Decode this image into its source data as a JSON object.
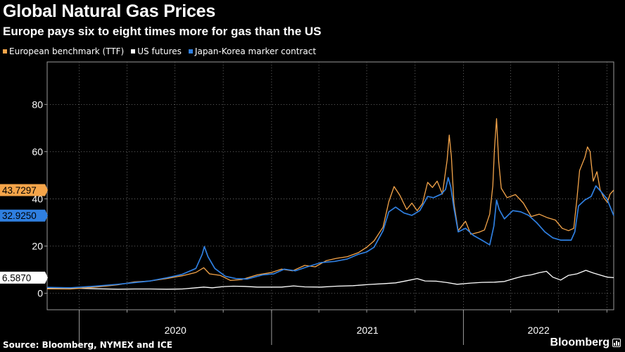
{
  "title": "Global Natural Gas Prices",
  "subtitle": "Europe pays six to eight times more for gas than the US",
  "source": "Source: Bloomberg, NYMEX and ICE",
  "brand": "Bloomberg",
  "legend": [
    {
      "label": "European benchmark (TTF)",
      "color": "#f5a54a"
    },
    {
      "label": "US futures",
      "color": "#ffffff"
    },
    {
      "label": "Japan-Korea marker contract",
      "color": "#2f7fe0"
    }
  ],
  "chart_data": {
    "type": "line",
    "title": "Global Natural Gas Prices",
    "subtitle": "Europe pays six to eight times more for gas than the US",
    "ylim": [
      -7,
      98
    ],
    "yticks": [
      0,
      20,
      40,
      60,
      80
    ],
    "xlim": [
      "2019-11-01",
      "2022-10-14"
    ],
    "year_labels": [
      "2020",
      "2021",
      "2022"
    ],
    "grid": true,
    "legend_position": "top-left",
    "series": [
      {
        "name": "European benchmark (TTF)",
        "color": "#f5a54a",
        "last_value": "43.7297",
        "points": [
          [
            "2019-11-01",
            1.9
          ],
          [
            "2019-12-15",
            1.8
          ],
          [
            "2020-02-01",
            2.6
          ],
          [
            "2020-03-15",
            3.6
          ],
          [
            "2020-04-15",
            4.8
          ],
          [
            "2020-05-15",
            5.2
          ],
          [
            "2020-06-15",
            6.2
          ],
          [
            "2020-07-15",
            7.4
          ],
          [
            "2020-08-10",
            8.8
          ],
          [
            "2020-08-25",
            10.8
          ],
          [
            "2020-09-05",
            8.2
          ],
          [
            "2020-09-25",
            7.6
          ],
          [
            "2020-10-15",
            5.4
          ],
          [
            "2020-11-05",
            5.8
          ],
          [
            "2020-12-05",
            7.8
          ],
          [
            "2021-01-01",
            8.8
          ],
          [
            "2021-01-20",
            10.2
          ],
          [
            "2021-02-10",
            9.5
          ],
          [
            "2021-03-05",
            11.8
          ],
          [
            "2021-03-25",
            11.2
          ],
          [
            "2021-04-15",
            13.8
          ],
          [
            "2021-05-05",
            14.8
          ],
          [
            "2021-05-25",
            15.5
          ],
          [
            "2021-06-15",
            17.2
          ],
          [
            "2021-07-01",
            19.5
          ],
          [
            "2021-07-15",
            22.2
          ],
          [
            "2021-08-01",
            28.0
          ],
          [
            "2021-08-12",
            38.8
          ],
          [
            "2021-08-22",
            45.2
          ],
          [
            "2021-09-02",
            41.5
          ],
          [
            "2021-09-15",
            35.5
          ],
          [
            "2021-09-25",
            38.2
          ],
          [
            "2021-10-05",
            35.0
          ],
          [
            "2021-10-15",
            38.0
          ],
          [
            "2021-10-25",
            47.0
          ],
          [
            "2021-11-03",
            44.8
          ],
          [
            "2021-11-12",
            47.5
          ],
          [
            "2021-11-22",
            42.0
          ],
          [
            "2021-12-01",
            56.5
          ],
          [
            "2021-12-05",
            67.0
          ],
          [
            "2021-12-09",
            58.0
          ],
          [
            "2021-12-14",
            38.0
          ],
          [
            "2021-12-22",
            26.5
          ],
          [
            "2022-01-05",
            30.5
          ],
          [
            "2022-01-15",
            25.0
          ],
          [
            "2022-01-30",
            25.8
          ],
          [
            "2022-02-10",
            26.8
          ],
          [
            "2022-02-20",
            33.5
          ],
          [
            "2022-02-26",
            45.5
          ],
          [
            "2022-03-01",
            61.0
          ],
          [
            "2022-03-05",
            74.0
          ],
          [
            "2022-03-09",
            56.0
          ],
          [
            "2022-03-14",
            44.5
          ],
          [
            "2022-03-25",
            40.5
          ],
          [
            "2022-04-10",
            41.8
          ],
          [
            "2022-04-25",
            38.2
          ],
          [
            "2022-05-10",
            32.5
          ],
          [
            "2022-05-25",
            33.5
          ],
          [
            "2022-06-10",
            32.0
          ],
          [
            "2022-06-25",
            31.0
          ],
          [
            "2022-07-08",
            27.5
          ],
          [
            "2022-07-20",
            26.5
          ],
          [
            "2022-07-30",
            27.5
          ],
          [
            "2022-08-05",
            40.0
          ],
          [
            "2022-08-10",
            52.0
          ],
          [
            "2022-08-20",
            57.5
          ],
          [
            "2022-08-25",
            62.0
          ],
          [
            "2022-08-30",
            60.0
          ],
          [
            "2022-09-01",
            55.5
          ],
          [
            "2022-09-05",
            47.5
          ],
          [
            "2022-09-12",
            51.5
          ],
          [
            "2022-09-18",
            44.0
          ],
          [
            "2022-09-25",
            40.5
          ],
          [
            "2022-10-02",
            38.5
          ],
          [
            "2022-10-07",
            42.0
          ],
          [
            "2022-10-14",
            43.7
          ]
        ]
      },
      {
        "name": "US futures",
        "color": "#ffffff",
        "last_value": "6.5870",
        "points": [
          [
            "2019-11-01",
            2.3
          ],
          [
            "2019-12-15",
            2.2
          ],
          [
            "2020-02-01",
            1.9
          ],
          [
            "2020-03-15",
            1.7
          ],
          [
            "2020-04-15",
            1.8
          ],
          [
            "2020-05-15",
            1.8
          ],
          [
            "2020-06-15",
            1.7
          ],
          [
            "2020-07-15",
            1.8
          ],
          [
            "2020-08-10",
            2.3
          ],
          [
            "2020-08-25",
            2.6
          ],
          [
            "2020-09-10",
            2.3
          ],
          [
            "2020-10-01",
            2.8
          ],
          [
            "2020-10-20",
            3.0
          ],
          [
            "2020-11-10",
            2.9
          ],
          [
            "2020-12-05",
            2.6
          ],
          [
            "2021-01-01",
            2.6
          ],
          [
            "2021-01-20",
            2.6
          ],
          [
            "2021-02-12",
            3.1
          ],
          [
            "2021-03-05",
            2.7
          ],
          [
            "2021-04-05",
            2.6
          ],
          [
            "2021-05-05",
            3.0
          ],
          [
            "2021-06-05",
            3.2
          ],
          [
            "2021-07-05",
            3.7
          ],
          [
            "2021-08-05",
            4.1
          ],
          [
            "2021-08-25",
            4.4
          ],
          [
            "2021-09-15",
            5.3
          ],
          [
            "2021-10-05",
            6.2
          ],
          [
            "2021-10-20",
            5.2
          ],
          [
            "2021-11-10",
            5.1
          ],
          [
            "2021-12-01",
            4.5
          ],
          [
            "2021-12-20",
            3.8
          ],
          [
            "2022-01-15",
            4.3
          ],
          [
            "2022-02-05",
            4.6
          ],
          [
            "2022-03-01",
            4.7
          ],
          [
            "2022-03-20",
            5.0
          ],
          [
            "2022-04-10",
            6.4
          ],
          [
            "2022-04-25",
            7.3
          ],
          [
            "2022-05-10",
            7.8
          ],
          [
            "2022-05-25",
            8.7
          ],
          [
            "2022-06-08",
            9.3
          ],
          [
            "2022-06-20",
            6.8
          ],
          [
            "2022-07-05",
            5.6
          ],
          [
            "2022-07-20",
            7.6
          ],
          [
            "2022-08-05",
            8.2
          ],
          [
            "2022-08-22",
            9.7
          ],
          [
            "2022-09-05",
            8.6
          ],
          [
            "2022-09-20",
            7.6
          ],
          [
            "2022-10-02",
            6.8
          ],
          [
            "2022-10-14",
            6.6
          ]
        ]
      },
      {
        "name": "Japan-Korea marker contract",
        "color": "#2f7fe0",
        "last_value": "32.9250",
        "points": [
          [
            "2019-11-01",
            2.5
          ],
          [
            "2019-12-15",
            2.3
          ],
          [
            "2020-02-01",
            3.0
          ],
          [
            "2020-03-15",
            3.8
          ],
          [
            "2020-04-15",
            4.5
          ],
          [
            "2020-05-15",
            5.2
          ],
          [
            "2020-06-15",
            6.5
          ],
          [
            "2020-07-15",
            8.0
          ],
          [
            "2020-08-10",
            10.5
          ],
          [
            "2020-08-22",
            16.5
          ],
          [
            "2020-08-26",
            19.8
          ],
          [
            "2020-09-02",
            15.5
          ],
          [
            "2020-09-15",
            10.5
          ],
          [
            "2020-10-05",
            7.2
          ],
          [
            "2020-10-25",
            6.2
          ],
          [
            "2020-11-15",
            6.0
          ],
          [
            "2020-12-15",
            7.8
          ],
          [
            "2021-01-05",
            8.2
          ],
          [
            "2021-01-25",
            10.2
          ],
          [
            "2021-02-15",
            9.5
          ],
          [
            "2021-03-10",
            11.2
          ],
          [
            "2021-04-05",
            13.0
          ],
          [
            "2021-05-01",
            13.5
          ],
          [
            "2021-05-25",
            14.5
          ],
          [
            "2021-06-15",
            16.5
          ],
          [
            "2021-07-01",
            17.5
          ],
          [
            "2021-07-15",
            19.5
          ],
          [
            "2021-08-01",
            26.5
          ],
          [
            "2021-08-12",
            34.5
          ],
          [
            "2021-08-25",
            36.5
          ],
          [
            "2021-09-10",
            34.0
          ],
          [
            "2021-09-25",
            33.0
          ],
          [
            "2021-10-10",
            35.0
          ],
          [
            "2021-10-25",
            41.0
          ],
          [
            "2021-11-05",
            40.5
          ],
          [
            "2021-11-20",
            42.0
          ],
          [
            "2021-11-28",
            44.0
          ],
          [
            "2021-12-03",
            49.0
          ],
          [
            "2021-12-08",
            45.0
          ],
          [
            "2021-12-14",
            36.0
          ],
          [
            "2021-12-22",
            26.0
          ],
          [
            "2022-01-05",
            27.5
          ],
          [
            "2022-01-20",
            24.5
          ],
          [
            "2022-02-05",
            22.5
          ],
          [
            "2022-02-20",
            20.5
          ],
          [
            "2022-02-28",
            28.5
          ],
          [
            "2022-03-05",
            39.5
          ],
          [
            "2022-03-10",
            35.5
          ],
          [
            "2022-03-20",
            31.5
          ],
          [
            "2022-04-05",
            35.0
          ],
          [
            "2022-04-20",
            34.5
          ],
          [
            "2022-05-05",
            33.0
          ],
          [
            "2022-05-20",
            30.0
          ],
          [
            "2022-06-05",
            26.0
          ],
          [
            "2022-06-20",
            23.5
          ],
          [
            "2022-07-05",
            22.5
          ],
          [
            "2022-07-25",
            22.5
          ],
          [
            "2022-08-01",
            26.0
          ],
          [
            "2022-08-08",
            37.0
          ],
          [
            "2022-08-20",
            39.5
          ],
          [
            "2022-09-01",
            41.0
          ],
          [
            "2022-09-10",
            45.5
          ],
          [
            "2022-09-20",
            43.0
          ],
          [
            "2022-10-01",
            40.0
          ],
          [
            "2022-10-14",
            32.9
          ]
        ]
      }
    ]
  }
}
